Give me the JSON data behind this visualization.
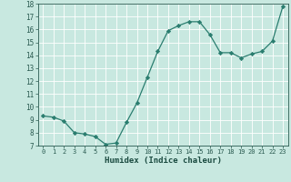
{
  "x": [
    0,
    1,
    2,
    3,
    4,
    5,
    6,
    7,
    8,
    9,
    10,
    11,
    12,
    13,
    14,
    15,
    16,
    17,
    18,
    19,
    20,
    21,
    22,
    23
  ],
  "y": [
    9.3,
    9.2,
    8.9,
    8.0,
    7.9,
    7.7,
    7.1,
    7.2,
    8.8,
    10.3,
    12.3,
    14.3,
    15.9,
    16.3,
    16.6,
    16.6,
    15.6,
    14.2,
    14.2,
    13.8,
    14.1,
    14.3,
    15.1,
    17.8
  ],
  "xlim": [
    -0.5,
    23.5
  ],
  "ylim": [
    7,
    18
  ],
  "yticks": [
    7,
    8,
    9,
    10,
    11,
    12,
    13,
    14,
    15,
    16,
    17,
    18
  ],
  "xticks": [
    0,
    1,
    2,
    3,
    4,
    5,
    6,
    7,
    8,
    9,
    10,
    11,
    12,
    13,
    14,
    15,
    16,
    17,
    18,
    19,
    20,
    21,
    22,
    23
  ],
  "xlabel": "Humidex (Indice chaleur)",
  "line_color": "#2a7d6f",
  "marker": "D",
  "marker_size": 2.2,
  "bg_color": "#c8e8e0",
  "grid_color": "#b0d8d0",
  "tick_color": "#2a5a50",
  "label_color": "#1a4a40"
}
